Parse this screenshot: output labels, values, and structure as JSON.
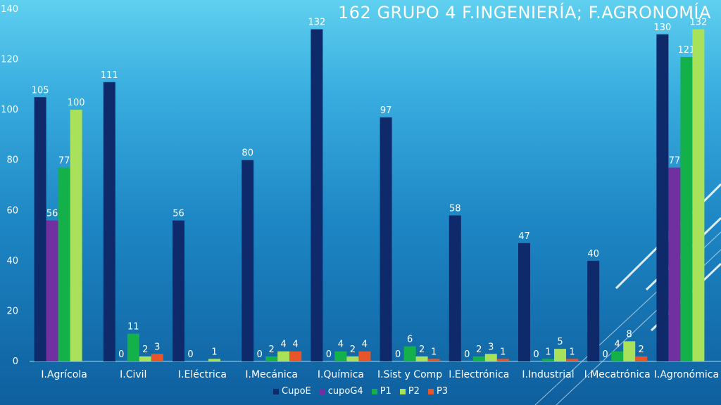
{
  "title": "162  GRUPO 4  F.INGENIERÍA;  F.AGRONOMÍA",
  "chart_data": {
    "type": "bar",
    "title": "162  GRUPO 4  F.INGENIERÍA;  F.AGRONOMÍA",
    "xlabel": "",
    "ylabel": "",
    "ylim": [
      0,
      140
    ],
    "yticks": [
      0,
      20,
      40,
      60,
      80,
      100,
      120,
      140
    ],
    "grid": false,
    "legend_position": "bottom",
    "categories": [
      "I.Agrícola",
      "I.Civil",
      "I.Eléctrica",
      "I.Mecánica",
      "I.Química",
      "I.Sist y Comp",
      "I.Electrónica",
      "I.Industrial",
      "I.Mecatrónica",
      "I.Agronómica"
    ],
    "series": [
      {
        "name": "CupoE",
        "color": "#0e2a6b",
        "values": [
          105,
          111,
          56,
          80,
          132,
          97,
          58,
          47,
          40,
          130
        ]
      },
      {
        "name": "cupoG4",
        "color": "#7030a0",
        "values": [
          56,
          0,
          0,
          0,
          0,
          0,
          0,
          0,
          0,
          77
        ]
      },
      {
        "name": "P1",
        "color": "#14b04a",
        "values": [
          77,
          11,
          null,
          2,
          4,
          6,
          2,
          1,
          4,
          121
        ]
      },
      {
        "name": "P2",
        "color": "#a9e25a",
        "values": [
          100,
          2,
          1,
          4,
          2,
          2,
          3,
          5,
          8,
          132
        ]
      },
      {
        "name": "P3",
        "color": "#e8552a",
        "values": [
          null,
          3,
          null,
          4,
          4,
          1,
          1,
          1,
          2,
          null
        ]
      }
    ]
  }
}
